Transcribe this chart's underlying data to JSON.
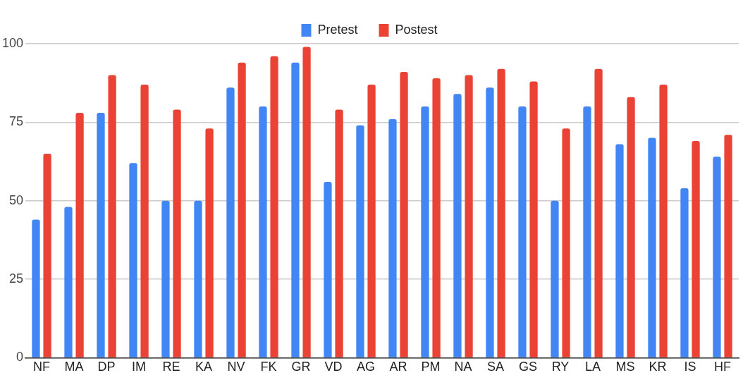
{
  "chart_data": {
    "type": "bar",
    "categories": [
      "NF",
      "MA",
      "DP",
      "IM",
      "RE",
      "KA",
      "NV",
      "FK",
      "GR",
      "VD",
      "AG",
      "AR",
      "PM",
      "NA",
      "SA",
      "GS",
      "RY",
      "LA",
      "MS",
      "KR",
      "IS",
      "HF"
    ],
    "series": [
      {
        "name": "Pretest",
        "color": "#4285f4",
        "values": [
          44,
          48,
          78,
          62,
          50,
          50,
          86,
          80,
          94,
          56,
          74,
          76,
          80,
          84,
          86,
          80,
          50,
          80,
          68,
          70,
          54,
          64
        ]
      },
      {
        "name": "Postest",
        "color": "#ea4335",
        "values": [
          65,
          78,
          90,
          87,
          79,
          73,
          94,
          96,
          99,
          79,
          87,
          91,
          89,
          90,
          92,
          88,
          73,
          92,
          83,
          87,
          69,
          71
        ]
      }
    ],
    "ylim": [
      0,
      100
    ],
    "yticks": [
      0,
      25,
      50,
      75,
      100
    ],
    "grid": "y",
    "legend": "top"
  }
}
